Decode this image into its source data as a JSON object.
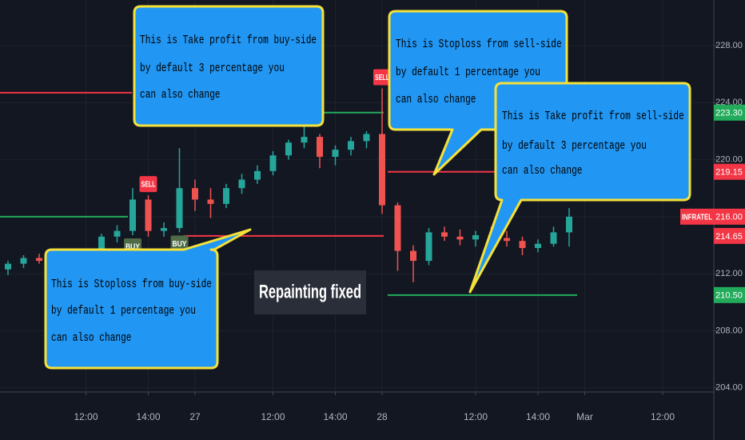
{
  "chart_data": {
    "type": "candlestick",
    "symbol": "INFRATEL",
    "categories": [
      null,
      null,
      null,
      null,
      null,
      "12:00",
      null,
      null,
      null,
      "14:00",
      null,
      null,
      "27",
      null,
      null,
      null,
      null,
      "12:00",
      null,
      null,
      null,
      "14:00",
      null,
      null,
      "28",
      null,
      null,
      null,
      null,
      null,
      "12:00",
      null,
      null,
      null,
      "14:00",
      null,
      null,
      "Mar",
      null,
      null,
      null,
      null,
      "12:00",
      null,
      null
    ],
    "open": [
      212.3,
      212.7,
      213.1,
      212.9,
      213.0,
      213.1,
      213.4,
      214.6,
      215.0,
      217.2,
      215.0,
      215.2,
      218.0,
      217.2,
      216.9,
      218.0,
      218.6,
      219.2,
      220.3,
      221.2,
      221.6,
      220.2,
      220.7,
      221.3,
      221.8,
      216.8,
      213.6,
      212.9,
      214.9,
      214.6,
      214.4,
      214.7,
      214.5,
      214.3,
      213.8,
      214.1,
      214.9,
      null,
      null,
      null,
      null,
      null,
      null,
      null,
      null
    ],
    "high": [
      212.9,
      213.3,
      213.4,
      213.2,
      213.3,
      213.6,
      214.8,
      215.4,
      218.0,
      217.5,
      215.6,
      220.8,
      218.6,
      218.0,
      218.3,
      219.0,
      219.6,
      220.6,
      221.4,
      223.4,
      221.8,
      221.0,
      221.6,
      222.0,
      225.0,
      217.0,
      214.0,
      215.2,
      215.3,
      215.1,
      215.0,
      215.3,
      215.0,
      214.6,
      214.4,
      215.3,
      216.6,
      null,
      null,
      null,
      null,
      null,
      null,
      null,
      null
    ],
    "low": [
      211.9,
      212.4,
      212.7,
      212.6,
      212.8,
      212.9,
      213.3,
      214.2,
      214.7,
      214.6,
      214.6,
      214.9,
      216.4,
      215.9,
      216.6,
      217.6,
      218.3,
      218.9,
      220.0,
      220.8,
      219.4,
      219.6,
      220.3,
      220.8,
      216.2,
      212.2,
      211.4,
      212.6,
      214.3,
      214.0,
      213.9,
      214.2,
      213.9,
      213.3,
      213.5,
      213.9,
      213.9,
      null,
      null,
      null,
      null,
      null,
      null,
      null,
      null
    ],
    "close": [
      212.7,
      213.1,
      212.9,
      213.0,
      213.1,
      213.4,
      214.6,
      215.0,
      217.2,
      215.0,
      215.2,
      218.0,
      217.2,
      216.9,
      218.0,
      218.6,
      219.2,
      220.3,
      221.2,
      221.6,
      220.2,
      220.7,
      221.3,
      221.8,
      216.8,
      213.6,
      212.9,
      214.9,
      214.6,
      214.4,
      214.7,
      214.5,
      214.3,
      213.8,
      214.1,
      214.9,
      216.0,
      null,
      null,
      null,
      null,
      null,
      null,
      null,
      null
    ],
    "up_color": "#26a69a",
    "down_color": "#ef5350",
    "ylim": [
      203.7,
      231.2
    ],
    "yticks": [
      {
        "value": 204,
        "label": "204.00"
      },
      {
        "value": 208,
        "label": "208.00"
      },
      {
        "value": 212,
        "label": "212.00"
      },
      {
        "value": 216,
        "label": "216.00"
      },
      {
        "value": 220,
        "label": "220.00"
      },
      {
        "value": 224,
        "label": "224.00"
      },
      {
        "value": 228,
        "label": "228.00"
      }
    ],
    "grid": true,
    "price_labels": [
      {
        "value": 223.3,
        "label": "223.30",
        "color": "#22ab5b"
      },
      {
        "value": 219.15,
        "label": "219.15",
        "color": "#f23645"
      },
      {
        "value": 216.0,
        "label": "216.00",
        "color": "#f23645"
      },
      {
        "value": 214.65,
        "label": "214.65",
        "color": "#f23645"
      },
      {
        "value": 210.5,
        "label": "210.50",
        "color": "#22ab5b"
      }
    ],
    "levels": [
      {
        "value": 224.7,
        "color": "#f23645"
      },
      {
        "value": 216.0,
        "color": "#22ab5b"
      }
    ],
    "signals": [
      {
        "label": "BUY",
        "index": 8,
        "color": "#4e6b46"
      },
      {
        "label": "SELL",
        "index": 9,
        "color": "#f23645"
      },
      {
        "label": "BUY",
        "index": 11,
        "color": "#4e6b46"
      },
      {
        "label": "SELL",
        "index": 24,
        "color": "#f23645"
      }
    ],
    "callouts": [
      {
        "lines": [
          "This is Take profit from buy-side",
          "by default 3 percentage you",
          "can also change"
        ]
      },
      {
        "lines": [
          "This is Stoploss from sell-side",
          "by default 1 percentage you",
          "can also change"
        ]
      },
      {
        "lines": [
          "This is Take profit from sell-side",
          "by default 3 percentage you",
          "can also change"
        ]
      },
      {
        "lines": [
          "This is Stoploss from buy-side",
          "by default 1 percentage you",
          "can also change"
        ]
      }
    ],
    "banner": "Repainting fixed"
  }
}
